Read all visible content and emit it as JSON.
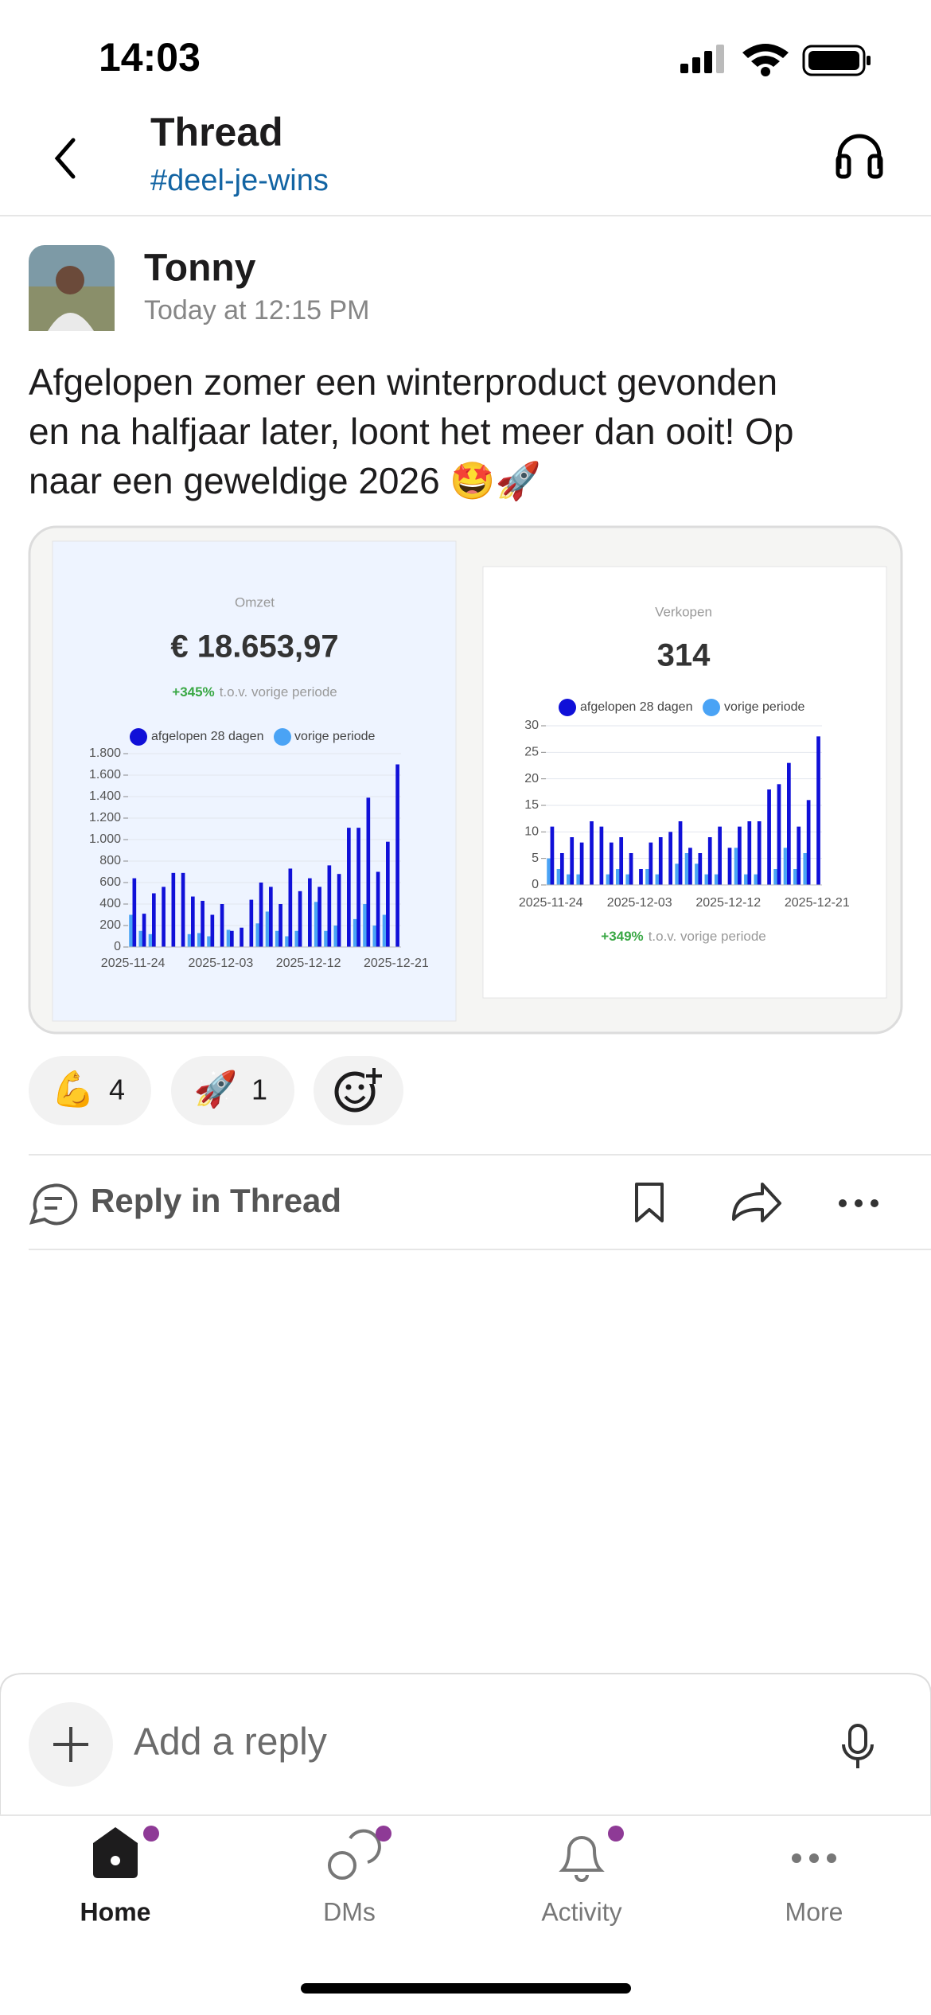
{
  "status_bar": {
    "time": "14:03"
  },
  "header": {
    "title": "Thread",
    "channel": "#deel-je-wins"
  },
  "message": {
    "author": "Tonny",
    "time": "Today at 12:15 PM",
    "text_lines": [
      "Afgelopen zomer een winterproduct gevonden",
      "en na halfjaar later, loont het meer dan ooit! Op",
      "naar een geweldige 2026 🤩🚀"
    ]
  },
  "charts": [
    {
      "type": "bar",
      "title": "Omzet",
      "headline": "€ 18.653,97",
      "change": "+345%",
      "change_note": "t.o.v. vorige periode",
      "categories": [
        "2025-11-24",
        null,
        null,
        null,
        null,
        null,
        null,
        null,
        null,
        "2025-12-03",
        null,
        null,
        null,
        null,
        null,
        null,
        null,
        null,
        "2025-12-12",
        null,
        null,
        null,
        null,
        null,
        null,
        null,
        null,
        "2025-12-21"
      ],
      "series": [
        {
          "name": "afgelopen 28 dagen",
          "color": "#1010d8",
          "values": [
            640,
            310,
            500,
            560,
            690,
            690,
            470,
            430,
            300,
            400,
            150,
            180,
            440,
            600,
            560,
            400,
            730,
            520,
            640,
            560,
            760,
            680,
            1110,
            1110,
            1390,
            700,
            980,
            1700
          ]
        },
        {
          "name": "vorige periode",
          "color": "#4aa3f5",
          "values": [
            300,
            150,
            120,
            0,
            0,
            0,
            120,
            130,
            100,
            0,
            160,
            0,
            0,
            220,
            330,
            150,
            100,
            150,
            0,
            420,
            150,
            200,
            0,
            260,
            400,
            200,
            300,
            0
          ]
        }
      ],
      "ylim": [
        0,
        1800
      ],
      "yticks": [
        0,
        200,
        400,
        600,
        800,
        {
          "value": 1000,
          "label": "1.000"
        },
        {
          "value": 1200,
          "label": "1.200"
        },
        {
          "value": 1400,
          "label": "1.400"
        },
        {
          "value": 1600,
          "label": "1.600"
        },
        {
          "value": 1800,
          "label": "1.800"
        }
      ],
      "grid": true
    },
    {
      "type": "bar",
      "title": "Verkopen",
      "headline": "314",
      "change": "+349%",
      "change_note": "t.o.v. vorige periode",
      "categories": [
        "2025-11-24",
        null,
        null,
        null,
        null,
        null,
        null,
        null,
        null,
        "2025-12-03",
        null,
        null,
        null,
        null,
        null,
        null,
        null,
        null,
        "2025-12-12",
        null,
        null,
        null,
        null,
        null,
        null,
        null,
        null,
        "2025-12-21"
      ],
      "series": [
        {
          "name": "afgelopen 28 dagen",
          "color": "#1010d8",
          "values": [
            11,
            6,
            9,
            8,
            12,
            11,
            8,
            9,
            6,
            3,
            8,
            9,
            10,
            12,
            7,
            6,
            9,
            11,
            7,
            11,
            12,
            12,
            18,
            19,
            23,
            11,
            16,
            28
          ]
        },
        {
          "name": "vorige periode",
          "color": "#4aa3f5",
          "values": [
            5,
            3,
            2,
            2,
            0,
            0,
            2,
            3,
            2,
            0,
            3,
            2,
            0,
            4,
            6,
            4,
            2,
            2,
            0,
            7,
            2,
            2,
            0,
            3,
            7,
            3,
            6,
            0
          ]
        }
      ],
      "ylim": [
        0,
        30
      ],
      "yticks": [
        0,
        5,
        10,
        15,
        20,
        25,
        30
      ],
      "grid": true
    }
  ],
  "reactions": [
    {
      "emoji": "💪",
      "count": 4
    },
    {
      "emoji": "🚀",
      "count": 1
    }
  ],
  "actions": {
    "reply": "Reply in Thread"
  },
  "composer": {
    "placeholder": "Add a reply"
  },
  "tabs": [
    {
      "label": "Home"
    },
    {
      "label": "DMs"
    },
    {
      "label": "Activity"
    },
    {
      "label": "More"
    }
  ]
}
